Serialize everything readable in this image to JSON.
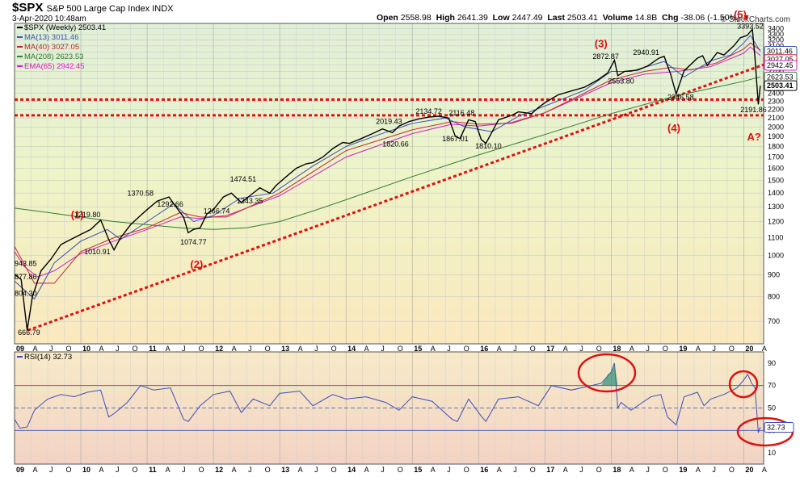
{
  "header": {
    "ticker": "$SPX",
    "description": "S&P 500 Large Cap Index INDX",
    "timestamp": "3-Apr-2020 10:48am",
    "watermark": "© StockCharts.com",
    "quote": {
      "open_label": "Open",
      "open": "2558.98",
      "high_label": "High",
      "high": "2641.39",
      "low_label": "Low",
      "low": "2447.49",
      "last_label": "Last",
      "last": "2503.41",
      "volume_label": "Volume",
      "volume": "14.8B",
      "chg_label": "Chg",
      "chg": "-38.06 (-1.50%)",
      "chg_arrow": "▼"
    }
  },
  "chart_data": [
    {
      "type": "line",
      "scale": "log",
      "ylim": [
        620,
        3500
      ],
      "xlim": [
        2009.0,
        2020.3
      ],
      "grid": true,
      "y_ticks": [
        700,
        800,
        900,
        1000,
        1100,
        1200,
        1300,
        1400,
        1500,
        1600,
        1700,
        1800,
        1900,
        2000,
        2100,
        2200,
        2300,
        2400,
        2500,
        2600,
        2700,
        2800,
        2900,
        3000,
        3100,
        3200,
        3300,
        3400
      ],
      "x_tick_labels": [
        "09",
        "A",
        "J",
        "O",
        "10",
        "A",
        "J",
        "O",
        "11",
        "A",
        "J",
        "O",
        "12",
        "A",
        "J",
        "O",
        "13",
        "A",
        "J",
        "O",
        "14",
        "A",
        "J",
        "O",
        "15",
        "A",
        "J",
        "O",
        "16",
        "A",
        "J",
        "O",
        "17",
        "A",
        "J",
        "O",
        "18",
        "A",
        "J",
        "O",
        "19",
        "A",
        "J",
        "O",
        "20",
        "A"
      ],
      "legend": [
        {
          "label": "$SPX (Weekly) 2503.41",
          "color": "#000000"
        },
        {
          "label": "MA(13) 3011.46",
          "color": "#3a4fb8"
        },
        {
          "label": "MA(40) 3027.05",
          "color": "#c0282c"
        },
        {
          "label": "MA(208) 2623.53",
          "color": "#2e7d32"
        },
        {
          "label": "EMA(65) 2942.45",
          "color": "#d020c8"
        }
      ],
      "series": [
        {
          "name": "$SPX (Weekly) 2503.41",
          "x": [
            2009.0,
            2009.1,
            2009.19,
            2009.27,
            2009.4,
            2009.55,
            2009.7,
            2009.85,
            2010.0,
            2010.15,
            2010.3,
            2010.42,
            2010.5,
            2010.6,
            2010.75,
            2010.9,
            2011.0,
            2011.15,
            2011.33,
            2011.45,
            2011.55,
            2011.62,
            2011.7,
            2011.8,
            2011.9,
            2012.0,
            2012.15,
            2012.27,
            2012.42,
            2012.55,
            2012.7,
            2012.85,
            2012.95,
            2013.1,
            2013.25,
            2013.4,
            2013.5,
            2013.65,
            2013.8,
            2013.95,
            2014.05,
            2014.2,
            2014.4,
            2014.55,
            2014.7,
            2014.8,
            2014.95,
            2015.1,
            2015.25,
            2015.4,
            2015.55,
            2015.65,
            2015.72,
            2015.85,
            2015.95,
            2016.04,
            2016.11,
            2016.3,
            2016.5,
            2016.6,
            2016.8,
            2016.9,
            2017.0,
            2017.2,
            2017.4,
            2017.6,
            2017.8,
            2017.95,
            2018.05,
            2018.1,
            2018.2,
            2018.4,
            2018.55,
            2018.72,
            2018.8,
            2018.9,
            2018.98,
            2019.1,
            2019.3,
            2019.38,
            2019.45,
            2019.6,
            2019.7,
            2019.85,
            2019.95,
            2020.05,
            2020.13,
            2020.17,
            2020.22,
            2020.25
          ],
          "y": [
            903,
            878,
            667,
            800,
            920,
            980,
            1060,
            1090,
            1120,
            1150,
            1210,
            1090,
            1030,
            1100,
            1180,
            1240,
            1280,
            1340,
            1370,
            1290,
            1230,
            1130,
            1150,
            1160,
            1250,
            1280,
            1370,
            1400,
            1330,
            1380,
            1440,
            1400,
            1460,
            1530,
            1600,
            1640,
            1650,
            1700,
            1780,
            1840,
            1830,
            1870,
            1930,
            1980,
            1940,
            2010,
            2060,
            2090,
            2110,
            2120,
            2100,
            1900,
            1880,
            2080,
            2060,
            1870,
            1830,
            2080,
            2130,
            2170,
            2150,
            2220,
            2280,
            2380,
            2430,
            2480,
            2580,
            2680,
            2870,
            2640,
            2700,
            2720,
            2780,
            2900,
            2930,
            2650,
            2390,
            2710,
            2900,
            2940,
            2790,
            2990,
            2950,
            3100,
            3240,
            3280,
            3390,
            2900,
            2260,
            2500
          ]
        },
        {
          "name": "MA(13) 3011.46",
          "x": [
            2009.0,
            2009.3,
            2009.6,
            2010.0,
            2010.4,
            2010.6,
            2011.0,
            2011.4,
            2011.7,
            2012.0,
            2012.4,
            2012.9,
            2013.5,
            2014.0,
            2014.5,
            2015.0,
            2015.5,
            2015.8,
            2016.2,
            2016.6,
            2017.0,
            2017.6,
            2018.0,
            2018.3,
            2018.8,
            2019.1,
            2019.5,
            2019.8,
            2020.0,
            2020.1,
            2020.25
          ],
          "y": [
            870,
            790,
            960,
            1080,
            1150,
            1090,
            1200,
            1320,
            1200,
            1240,
            1360,
            1400,
            1620,
            1800,
            1920,
            2040,
            2100,
            2000,
            1950,
            2120,
            2240,
            2440,
            2700,
            2700,
            2850,
            2620,
            2860,
            2950,
            3150,
            3280,
            3011
          ]
        },
        {
          "name": "MA(40) 3027.05",
          "x": [
            2009.0,
            2009.3,
            2009.6,
            2010.0,
            2010.5,
            2011.0,
            2011.5,
            2011.8,
            2012.2,
            2013.0,
            2014.0,
            2015.0,
            2015.6,
            2016.0,
            2016.5,
            2017.0,
            2018.0,
            2018.5,
            2018.9,
            2019.2,
            2019.6,
            2020.0,
            2020.1,
            2020.25
          ],
          "y": [
            1050,
            860,
            860,
            1020,
            1100,
            1160,
            1260,
            1230,
            1230,
            1400,
            1760,
            1970,
            2060,
            2030,
            2040,
            2160,
            2580,
            2700,
            2760,
            2720,
            2830,
            3050,
            3150,
            3027
          ]
        },
        {
          "name": "MA(208) 2623.53",
          "x": [
            2009.0,
            2009.5,
            2010.0,
            2010.5,
            2011.0,
            2011.5,
            2012.0,
            2012.5,
            2013.0,
            2013.5,
            2014.0,
            2015.0,
            2016.0,
            2017.0,
            2018.0,
            2019.0,
            2020.0,
            2020.25
          ],
          "y": [
            1290,
            1260,
            1230,
            1200,
            1180,
            1160,
            1150,
            1160,
            1200,
            1270,
            1350,
            1530,
            1720,
            1920,
            2150,
            2370,
            2560,
            2623
          ]
        },
        {
          "name": "EMA(65) 2942.45",
          "x": [
            2009.0,
            2009.15,
            2009.35,
            2009.6,
            2010.0,
            2010.5,
            2011.0,
            2011.5,
            2011.8,
            2012.2,
            2013.0,
            2014.0,
            2015.0,
            2015.6,
            2016.0,
            2016.5,
            2017.0,
            2018.0,
            2018.5,
            2019.0,
            2019.5,
            2020.0,
            2020.1,
            2020.25
          ],
          "y": [
            1020,
            940,
            890,
            920,
            1010,
            1080,
            1150,
            1230,
            1220,
            1240,
            1380,
            1700,
            1930,
            2030,
            2010,
            2050,
            2160,
            2540,
            2660,
            2700,
            2770,
            2980,
            3080,
            2942
          ]
        }
      ],
      "annotations": [
        "943.85",
        "877.86",
        "804.30",
        "666.79",
        "1219.80",
        "1010.91",
        "1370.58",
        "1292.66",
        "1074.77",
        "1266.74",
        "1474.51",
        "1343.35",
        "2019.43",
        "2134.72",
        "2116.48",
        "1820.66",
        "1867.01",
        "1810.10",
        "2872.87",
        "2553.80",
        "2940.91",
        "2346.58",
        "3393.52",
        "2191.86"
      ],
      "wave_labels": [
        "(1)",
        "(2)",
        "(3)",
        "(4)",
        "(5)",
        "A?"
      ],
      "price_tags": [
        {
          "value": "3011.46",
          "border": "#3a4fb8"
        },
        {
          "value": "3027.05",
          "border": "#c0282c"
        },
        {
          "value": "2942.45",
          "border": "#d020c8"
        },
        {
          "value": "2623.53",
          "border": "#2e7d32"
        },
        {
          "value": "2503.41",
          "border": "#000000"
        }
      ]
    },
    {
      "type": "line",
      "legend": "RSI(14) 32.73",
      "ylim": [
        0,
        100
      ],
      "y_ticks": [
        10,
        30,
        50,
        70,
        90
      ],
      "reference_lines": [
        70,
        50,
        30
      ],
      "x_tick_labels": [
        "09",
        "A",
        "J",
        "O",
        "10",
        "A",
        "J",
        "O",
        "11",
        "A",
        "J",
        "O",
        "12",
        "A",
        "J",
        "O",
        "13",
        "A",
        "J",
        "O",
        "14",
        "A",
        "J",
        "O",
        "15",
        "A",
        "J",
        "O",
        "16",
        "A",
        "J",
        "O",
        "17",
        "A",
        "J",
        "O",
        "18",
        "A",
        "J",
        "O",
        "19",
        "A",
        "J",
        "O",
        "20",
        "A"
      ],
      "series": [
        {
          "name": "RSI(14) 32.73",
          "x": [
            2009.0,
            2009.08,
            2009.19,
            2009.3,
            2009.5,
            2009.7,
            2009.9,
            2010.1,
            2010.3,
            2010.42,
            2010.5,
            2010.7,
            2010.9,
            2011.1,
            2011.35,
            2011.55,
            2011.62,
            2011.8,
            2012.0,
            2012.25,
            2012.42,
            2012.6,
            2012.85,
            2013.0,
            2013.3,
            2013.5,
            2013.8,
            2014.0,
            2014.3,
            2014.6,
            2014.8,
            2015.0,
            2015.3,
            2015.6,
            2015.68,
            2015.85,
            2016.05,
            2016.11,
            2016.3,
            2016.6,
            2016.9,
            2017.1,
            2017.4,
            2017.7,
            2017.85,
            2018.0,
            2018.05,
            2018.1,
            2018.15,
            2018.3,
            2018.6,
            2018.75,
            2018.85,
            2018.98,
            2019.1,
            2019.3,
            2019.4,
            2019.5,
            2019.7,
            2019.9,
            2020.0,
            2020.06,
            2020.12,
            2020.17,
            2020.22,
            2020.25
          ],
          "y": [
            40,
            32,
            33,
            48,
            58,
            62,
            60,
            64,
            66,
            42,
            45,
            55,
            70,
            66,
            68,
            40,
            38,
            52,
            62,
            65,
            46,
            58,
            52,
            63,
            65,
            52,
            62,
            58,
            60,
            55,
            48,
            60,
            56,
            40,
            38,
            58,
            42,
            38,
            58,
            60,
            52,
            70,
            66,
            70,
            72,
            82,
            90,
            50,
            55,
            48,
            60,
            62,
            42,
            35,
            60,
            64,
            52,
            58,
            62,
            68,
            75,
            80,
            72,
            68,
            28,
            33
          ]
        }
      ],
      "price_tags": [
        {
          "value": "32.73",
          "border": "#3a4fb8"
        }
      ]
    }
  ]
}
